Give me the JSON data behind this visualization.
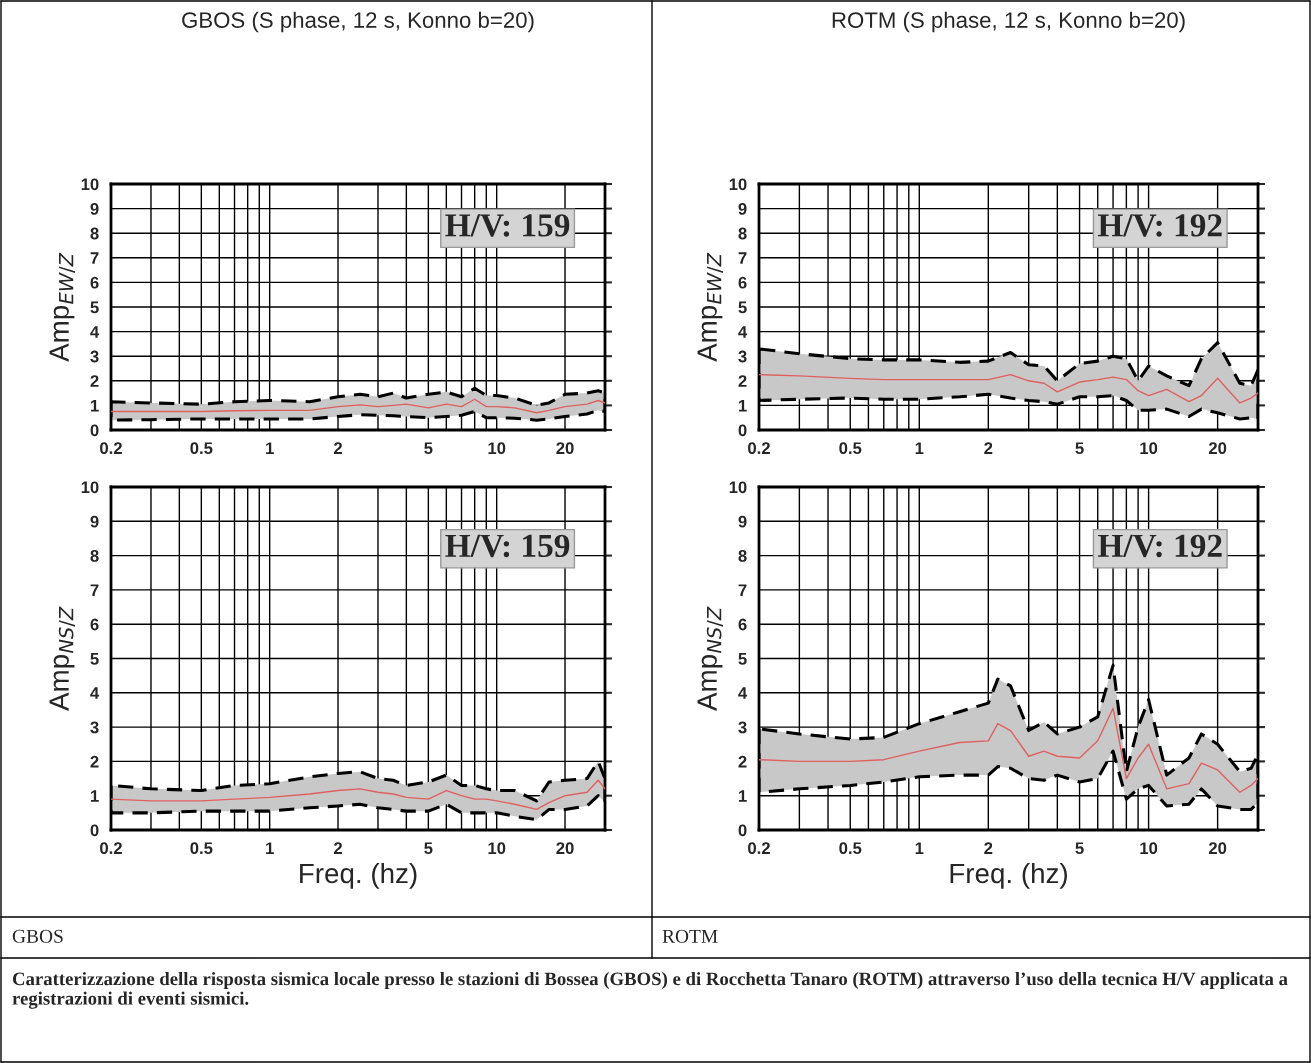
{
  "chart_data": [
    {
      "type": "line",
      "title": "GBOS (S phase, 12 s, Konno b=20)",
      "ylabel": "Amp$_{EW/Z}$",
      "log": "x",
      "grid": true,
      "xlim": [
        0.2,
        30
      ],
      "xticks": [
        0.2,
        {
          "value": 0.3,
          "label": null
        },
        {
          "value": 0.4,
          "label": null
        },
        0.5,
        {
          "value": 0.6,
          "label": null
        },
        {
          "value": 0.7,
          "label": null
        },
        {
          "value": 0.8,
          "label": null
        },
        {
          "value": 0.9,
          "label": null
        },
        1,
        2,
        {
          "value": 3,
          "label": null
        },
        {
          "value": 4,
          "label": null
        },
        5,
        {
          "value": 6,
          "label": null
        },
        {
          "value": 7,
          "label": null
        },
        {
          "value": 8,
          "label": null
        },
        {
          "value": 9,
          "label": null
        },
        10,
        20
      ],
      "ylim": [
        0,
        10
      ],
      "yticks": [
        0,
        1,
        2,
        3,
        4,
        5,
        6,
        7,
        8,
        9,
        10
      ],
      "x": [
        0.2,
        0.3,
        0.5,
        0.7,
        1,
        1.5,
        2,
        2.5,
        3,
        3.5,
        4,
        5,
        6,
        7,
        8,
        9,
        10,
        12,
        15,
        17,
        20,
        25,
        28,
        30
      ],
      "series": [
        {
          "color": "#e06060",
          "values": [
            0.75,
            0.75,
            0.75,
            0.78,
            0.8,
            0.8,
            0.95,
            1.02,
            0.95,
            1.0,
            1.05,
            0.9,
            1.05,
            0.95,
            1.25,
            0.95,
            0.95,
            0.9,
            0.7,
            0.8,
            0.95,
            1.05,
            1.2,
            1.1
          ],
          "upper": [
            1.15,
            1.1,
            1.05,
            1.15,
            1.2,
            1.15,
            1.35,
            1.45,
            1.35,
            1.5,
            1.3,
            1.45,
            1.55,
            1.35,
            1.7,
            1.4,
            1.4,
            1.3,
            1.0,
            1.1,
            1.45,
            1.5,
            1.6,
            1.5
          ],
          "lower": [
            0.4,
            0.42,
            0.45,
            0.45,
            0.45,
            0.45,
            0.55,
            0.62,
            0.6,
            0.58,
            0.55,
            0.5,
            0.55,
            0.6,
            0.75,
            0.5,
            0.5,
            0.48,
            0.4,
            0.45,
            0.55,
            0.65,
            0.8,
            0.75
          ]
        }
      ],
      "annotations": [
        "H/V: 159"
      ]
    },
    {
      "type": "line",
      "title": "ROTM (S phase, 12 s, Konno b=20)",
      "ylabel": "Amp$_{EW/Z}$",
      "log": "x",
      "grid": true,
      "xlim": [
        0.2,
        30
      ],
      "xticks": [
        0.2,
        {
          "value": 0.3,
          "label": null
        },
        {
          "value": 0.4,
          "label": null
        },
        0.5,
        {
          "value": 0.6,
          "label": null
        },
        {
          "value": 0.7,
          "label": null
        },
        {
          "value": 0.8,
          "label": null
        },
        {
          "value": 0.9,
          "label": null
        },
        1,
        2,
        {
          "value": 3,
          "label": null
        },
        {
          "value": 4,
          "label": null
        },
        5,
        {
          "value": 6,
          "label": null
        },
        {
          "value": 7,
          "label": null
        },
        {
          "value": 8,
          "label": null
        },
        {
          "value": 9,
          "label": null
        },
        10,
        20
      ],
      "ylim": [
        0,
        10
      ],
      "yticks": [
        0,
        1,
        2,
        3,
        4,
        5,
        6,
        7,
        8,
        9,
        10
      ],
      "x": [
        0.2,
        0.3,
        0.5,
        0.7,
        1,
        1.5,
        2,
        2.5,
        3,
        3.5,
        4,
        5,
        6,
        7,
        8,
        9,
        10,
        12,
        15,
        17,
        20,
        25,
        28,
        30
      ],
      "series": [
        {
          "color": "#e06060",
          "values": [
            2.25,
            2.2,
            2.1,
            2.05,
            2.05,
            2.05,
            2.05,
            2.25,
            2.0,
            1.9,
            1.55,
            1.95,
            2.05,
            2.15,
            2.05,
            1.6,
            1.4,
            1.65,
            1.15,
            1.4,
            2.1,
            1.1,
            1.3,
            1.5
          ],
          "upper": [
            3.3,
            3.1,
            2.9,
            2.85,
            2.85,
            2.75,
            2.8,
            3.15,
            2.65,
            2.6,
            2.0,
            2.7,
            2.8,
            3.0,
            2.9,
            2.0,
            2.6,
            2.2,
            1.8,
            2.9,
            3.55,
            1.9,
            1.8,
            2.45
          ],
          "lower": [
            1.2,
            1.25,
            1.3,
            1.25,
            1.25,
            1.35,
            1.45,
            1.3,
            1.2,
            1.15,
            1.05,
            1.35,
            1.35,
            1.4,
            1.2,
            0.8,
            0.8,
            0.85,
            0.55,
            0.85,
            0.7,
            0.45,
            0.5,
            0.45
          ]
        }
      ],
      "annotations": [
        "H/V: 192"
      ]
    },
    {
      "type": "line",
      "xlabel": "Freq. (hz)",
      "ylabel": "Amp$_{NS/Z}$",
      "log": "x",
      "grid": true,
      "xlim": [
        0.2,
        30
      ],
      "xticks": [
        0.2,
        {
          "value": 0.3,
          "label": null
        },
        {
          "value": 0.4,
          "label": null
        },
        0.5,
        {
          "value": 0.6,
          "label": null
        },
        {
          "value": 0.7,
          "label": null
        },
        {
          "value": 0.8,
          "label": null
        },
        {
          "value": 0.9,
          "label": null
        },
        1,
        2,
        {
          "value": 3,
          "label": null
        },
        {
          "value": 4,
          "label": null
        },
        5,
        {
          "value": 6,
          "label": null
        },
        {
          "value": 7,
          "label": null
        },
        {
          "value": 8,
          "label": null
        },
        {
          "value": 9,
          "label": null
        },
        10,
        20
      ],
      "ylim": [
        0,
        10
      ],
      "yticks": [
        0,
        1,
        2,
        3,
        4,
        5,
        6,
        7,
        8,
        9,
        10
      ],
      "x": [
        0.2,
        0.3,
        0.5,
        0.7,
        1,
        1.5,
        2,
        2.5,
        3,
        3.5,
        4,
        5,
        6,
        7,
        8,
        9,
        10,
        12,
        15,
        17,
        20,
        25,
        28,
        30
      ],
      "series": [
        {
          "color": "#e06060",
          "values": [
            0.9,
            0.85,
            0.85,
            0.9,
            0.95,
            1.05,
            1.15,
            1.2,
            1.1,
            1.05,
            0.95,
            0.9,
            1.15,
            1.0,
            0.9,
            0.9,
            0.85,
            0.75,
            0.6,
            0.8,
            1.0,
            1.1,
            1.45,
            1.2
          ],
          "upper": [
            1.3,
            1.2,
            1.15,
            1.3,
            1.35,
            1.55,
            1.65,
            1.7,
            1.5,
            1.45,
            1.3,
            1.4,
            1.6,
            1.3,
            1.3,
            1.2,
            1.15,
            1.15,
            0.85,
            1.4,
            1.45,
            1.5,
            2.0,
            1.5
          ],
          "lower": [
            0.5,
            0.5,
            0.55,
            0.55,
            0.55,
            0.65,
            0.7,
            0.75,
            0.65,
            0.6,
            0.55,
            0.55,
            0.75,
            0.5,
            0.5,
            0.5,
            0.5,
            0.4,
            0.3,
            0.6,
            0.6,
            0.7,
            1.0,
            0.8
          ]
        }
      ],
      "annotations": [
        "H/V: 159",
        "GBOS"
      ]
    },
    {
      "type": "line",
      "xlabel": "Freq. (hz)",
      "ylabel": "Amp$_{NS/Z}$",
      "log": "x",
      "grid": true,
      "xlim": [
        0.2,
        30
      ],
      "xticks": [
        0.2,
        {
          "value": 0.3,
          "label": null
        },
        {
          "value": 0.4,
          "label": null
        },
        0.5,
        {
          "value": 0.6,
          "label": null
        },
        {
          "value": 0.7,
          "label": null
        },
        {
          "value": 0.8,
          "label": null
        },
        {
          "value": 0.9,
          "label": null
        },
        1,
        2,
        {
          "value": 3,
          "label": null
        },
        {
          "value": 4,
          "label": null
        },
        5,
        {
          "value": 6,
          "label": null
        },
        {
          "value": 7,
          "label": null
        },
        {
          "value": 8,
          "label": null
        },
        {
          "value": 9,
          "label": null
        },
        10,
        20
      ],
      "ylim": [
        0,
        10
      ],
      "yticks": [
        0,
        1,
        2,
        3,
        4,
        5,
        6,
        7,
        8,
        9,
        10
      ],
      "x": [
        0.2,
        0.3,
        0.5,
        0.7,
        1,
        1.5,
        2,
        2.2,
        2.5,
        3,
        3.5,
        4,
        5,
        6,
        7,
        8,
        9,
        10,
        12,
        15,
        17,
        20,
        25,
        28,
        30
      ],
      "series": [
        {
          "color": "#e06060",
          "values": [
            2.05,
            2.0,
            2.0,
            2.05,
            2.3,
            2.55,
            2.6,
            3.1,
            2.9,
            2.15,
            2.3,
            2.15,
            2.1,
            2.6,
            3.55,
            1.5,
            2.1,
            2.5,
            1.2,
            1.35,
            1.95,
            1.75,
            1.1,
            1.3,
            1.5
          ],
          "upper": [
            2.95,
            2.8,
            2.65,
            2.7,
            3.1,
            3.45,
            3.7,
            4.4,
            4.2,
            2.9,
            3.15,
            2.8,
            3.0,
            3.3,
            4.8,
            1.7,
            3.0,
            3.8,
            1.6,
            2.1,
            2.8,
            2.5,
            1.7,
            1.8,
            2.2
          ],
          "lower": [
            1.1,
            1.2,
            1.3,
            1.4,
            1.55,
            1.6,
            1.6,
            1.85,
            1.8,
            1.5,
            1.45,
            1.6,
            1.4,
            1.5,
            2.3,
            0.9,
            1.2,
            1.3,
            0.7,
            0.75,
            1.2,
            0.7,
            0.6,
            0.6,
            0.8
          ]
        }
      ],
      "annotations": [
        "H/V: 192",
        "ROTM",
        "Caratterizzazione della risposta sismica locale presso le stazioni di Bossea (GBOS) e di Rocchetta Tanaro (ROTM) attraverso l’uso della tecnica H/V applicata a registrazioni di eventi sismici."
      ]
    }
  ]
}
